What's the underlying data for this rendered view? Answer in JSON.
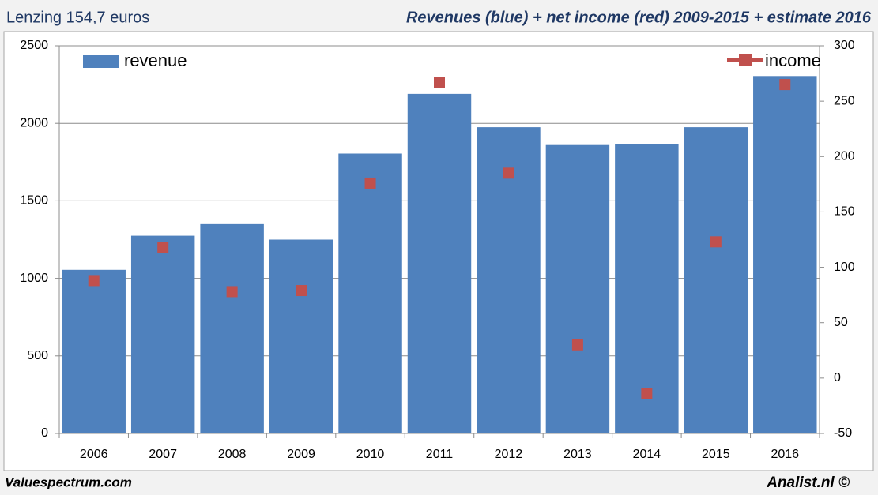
{
  "chart_data": {
    "type": "bar",
    "title": "Lenzing 154,7 euros",
    "subtitle": "Revenues (blue) + net income (red) 2009-2015 + estimate 2016",
    "source": "Valuespectrum.com",
    "credit": "Analist.nl ©",
    "categories": [
      "2006",
      "2007",
      "2008",
      "2009",
      "2010",
      "2011",
      "2012",
      "2013",
      "2014",
      "2015",
      "2016"
    ],
    "series": [
      {
        "name": "revenue",
        "type": "bar",
        "color": "#4f81bd",
        "values": [
          1055,
          1275,
          1350,
          1250,
          1805,
          2190,
          1975,
          1860,
          1865,
          1975,
          2305
        ]
      },
      {
        "name": "income",
        "type": "line",
        "axis": "y2",
        "color": "#c0504d",
        "values": [
          88,
          118,
          78,
          79,
          176,
          267,
          185,
          30,
          -14,
          123,
          265
        ]
      }
    ],
    "ylim": [
      0,
      2500
    ],
    "yticks": [
      0,
      500,
      1000,
      1500,
      2000,
      2500
    ],
    "y2lim": [
      -50,
      300
    ],
    "y2ticks": [
      -50,
      0,
      50,
      100,
      150,
      200,
      250,
      300
    ],
    "grid": true
  }
}
